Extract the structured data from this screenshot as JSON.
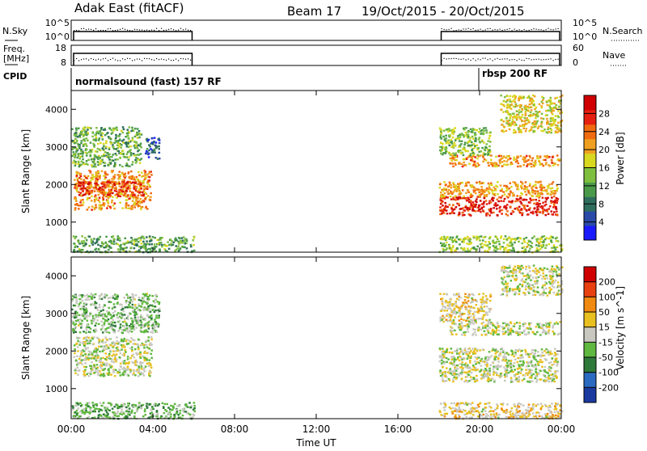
{
  "header": {
    "station": "Adak East (fitACF)",
    "beam": "Beam 17",
    "date_range": "19/Oct/2015 - 20/Oct/2015"
  },
  "panels": {
    "nsky": {
      "left_label": "N.Sky",
      "left_ticks": [
        "10^5",
        "10^0"
      ],
      "right_label": "N.Search",
      "right_ticks": [
        "10^5",
        "10^0"
      ]
    },
    "freq": {
      "left_label_1": "Freq.",
      "left_label_2": "[MHz]",
      "left_ticks": [
        "18",
        "8"
      ],
      "right_label": "Nave",
      "right_ticks": [
        "60",
        "0"
      ]
    },
    "cpid": {
      "label": "CPID",
      "segments": [
        {
          "name": "normalsound (fast) 157 RF"
        },
        {
          "name": "rbsp 200 RF"
        }
      ]
    }
  },
  "colors": {
    "power_scale": [
      "#1a1aff",
      "#2a4aa8",
      "#2f6e5e",
      "#4a9a4a",
      "#7fbf3f",
      "#d8d820",
      "#f0a020",
      "#f06a10",
      "#e62010",
      "#d00000"
    ],
    "velocity_scale": [
      "#1a3aa0",
      "#2a6ac0",
      "#2f7a3a",
      "#5fb83f",
      "#c8c8c0",
      "#e8c020",
      "#f08a10",
      "#e84010",
      "#d00000"
    ]
  },
  "chart_data": [
    {
      "type": "heatmap",
      "name": "power",
      "xlabel": "",
      "ylabel": "Slant Range [km]",
      "ylim": [
        200,
        4500
      ],
      "yticks": [
        1000,
        2000,
        3000,
        4000
      ],
      "colorbar_label": "Power [dB]",
      "colorbar_ticks": [
        "28",
        "24",
        "20",
        "16",
        "12",
        "8",
        "4"
      ],
      "colorbar_range": [
        0,
        32
      ],
      "x_range_hours": [
        0,
        24
      ],
      "bands": [
        {
          "t0": 0.1,
          "t1": 3.9,
          "r0": 1350,
          "r1": 2400,
          "level": 22
        },
        {
          "t0": 0.3,
          "t1": 3.5,
          "r0": 1700,
          "r1": 2100,
          "level": 26
        },
        {
          "t0": 0.0,
          "t1": 3.4,
          "r0": 2500,
          "r1": 3550,
          "level": 13
        },
        {
          "t0": 3.6,
          "t1": 4.3,
          "r0": 2700,
          "r1": 3300,
          "level": 6
        },
        {
          "t0": 18.0,
          "t1": 23.8,
          "r0": 1200,
          "r1": 1700,
          "level": 28
        },
        {
          "t0": 18.0,
          "t1": 23.8,
          "r0": 1700,
          "r1": 2100,
          "level": 21
        },
        {
          "t0": 18.5,
          "t1": 23.9,
          "r0": 2500,
          "r1": 2800,
          "level": 22
        },
        {
          "t0": 18.0,
          "t1": 20.5,
          "r0": 2800,
          "r1": 3550,
          "level": 14
        },
        {
          "t0": 21.0,
          "t1": 24.0,
          "r0": 3400,
          "r1": 4400,
          "level": 18
        },
        {
          "t0": 0.0,
          "t1": 6.0,
          "r0": 220,
          "r1": 650,
          "level": 12
        },
        {
          "t0": 18.0,
          "t1": 24.0,
          "r0": 220,
          "r1": 650,
          "level": 15
        }
      ]
    },
    {
      "type": "heatmap",
      "name": "velocity",
      "xlabel": "Time UT",
      "ylabel": "Slant Range [km]",
      "ylim": [
        200,
        4500
      ],
      "yticks": [
        1000,
        2000,
        3000,
        4000
      ],
      "x_ticks": [
        "00:00",
        "04:00",
        "08:00",
        "12:00",
        "16:00",
        "20:00",
        "00:00"
      ],
      "colorbar_label": "Velocity [m s^-1]",
      "colorbar_ticks": [
        "200",
        "100",
        "50",
        "15",
        "-15",
        "-50",
        "-100",
        "-200"
      ],
      "colorbar_range": [
        -250,
        250
      ],
      "bands": [
        {
          "t0": 0.1,
          "t1": 3.9,
          "r0": 1350,
          "r1": 2400,
          "level": 0
        },
        {
          "t0": 0.0,
          "t1": 4.3,
          "r0": 2500,
          "r1": 3550,
          "level": -40
        },
        {
          "t0": 18.0,
          "t1": 23.8,
          "r0": 1200,
          "r1": 2100,
          "level": 0
        },
        {
          "t0": 18.5,
          "t1": 23.9,
          "r0": 2450,
          "r1": 2800,
          "level": 0
        },
        {
          "t0": 18.0,
          "t1": 20.5,
          "r0": 2800,
          "r1": 3550,
          "level": 30
        },
        {
          "t0": 21.0,
          "t1": 24.0,
          "r0": 3500,
          "r1": 4300,
          "level": 0
        },
        {
          "t0": 0.0,
          "t1": 6.0,
          "r0": 220,
          "r1": 650,
          "level": -60
        },
        {
          "t0": 18.0,
          "t1": 24.0,
          "r0": 220,
          "r1": 650,
          "level": 40
        }
      ]
    }
  ]
}
